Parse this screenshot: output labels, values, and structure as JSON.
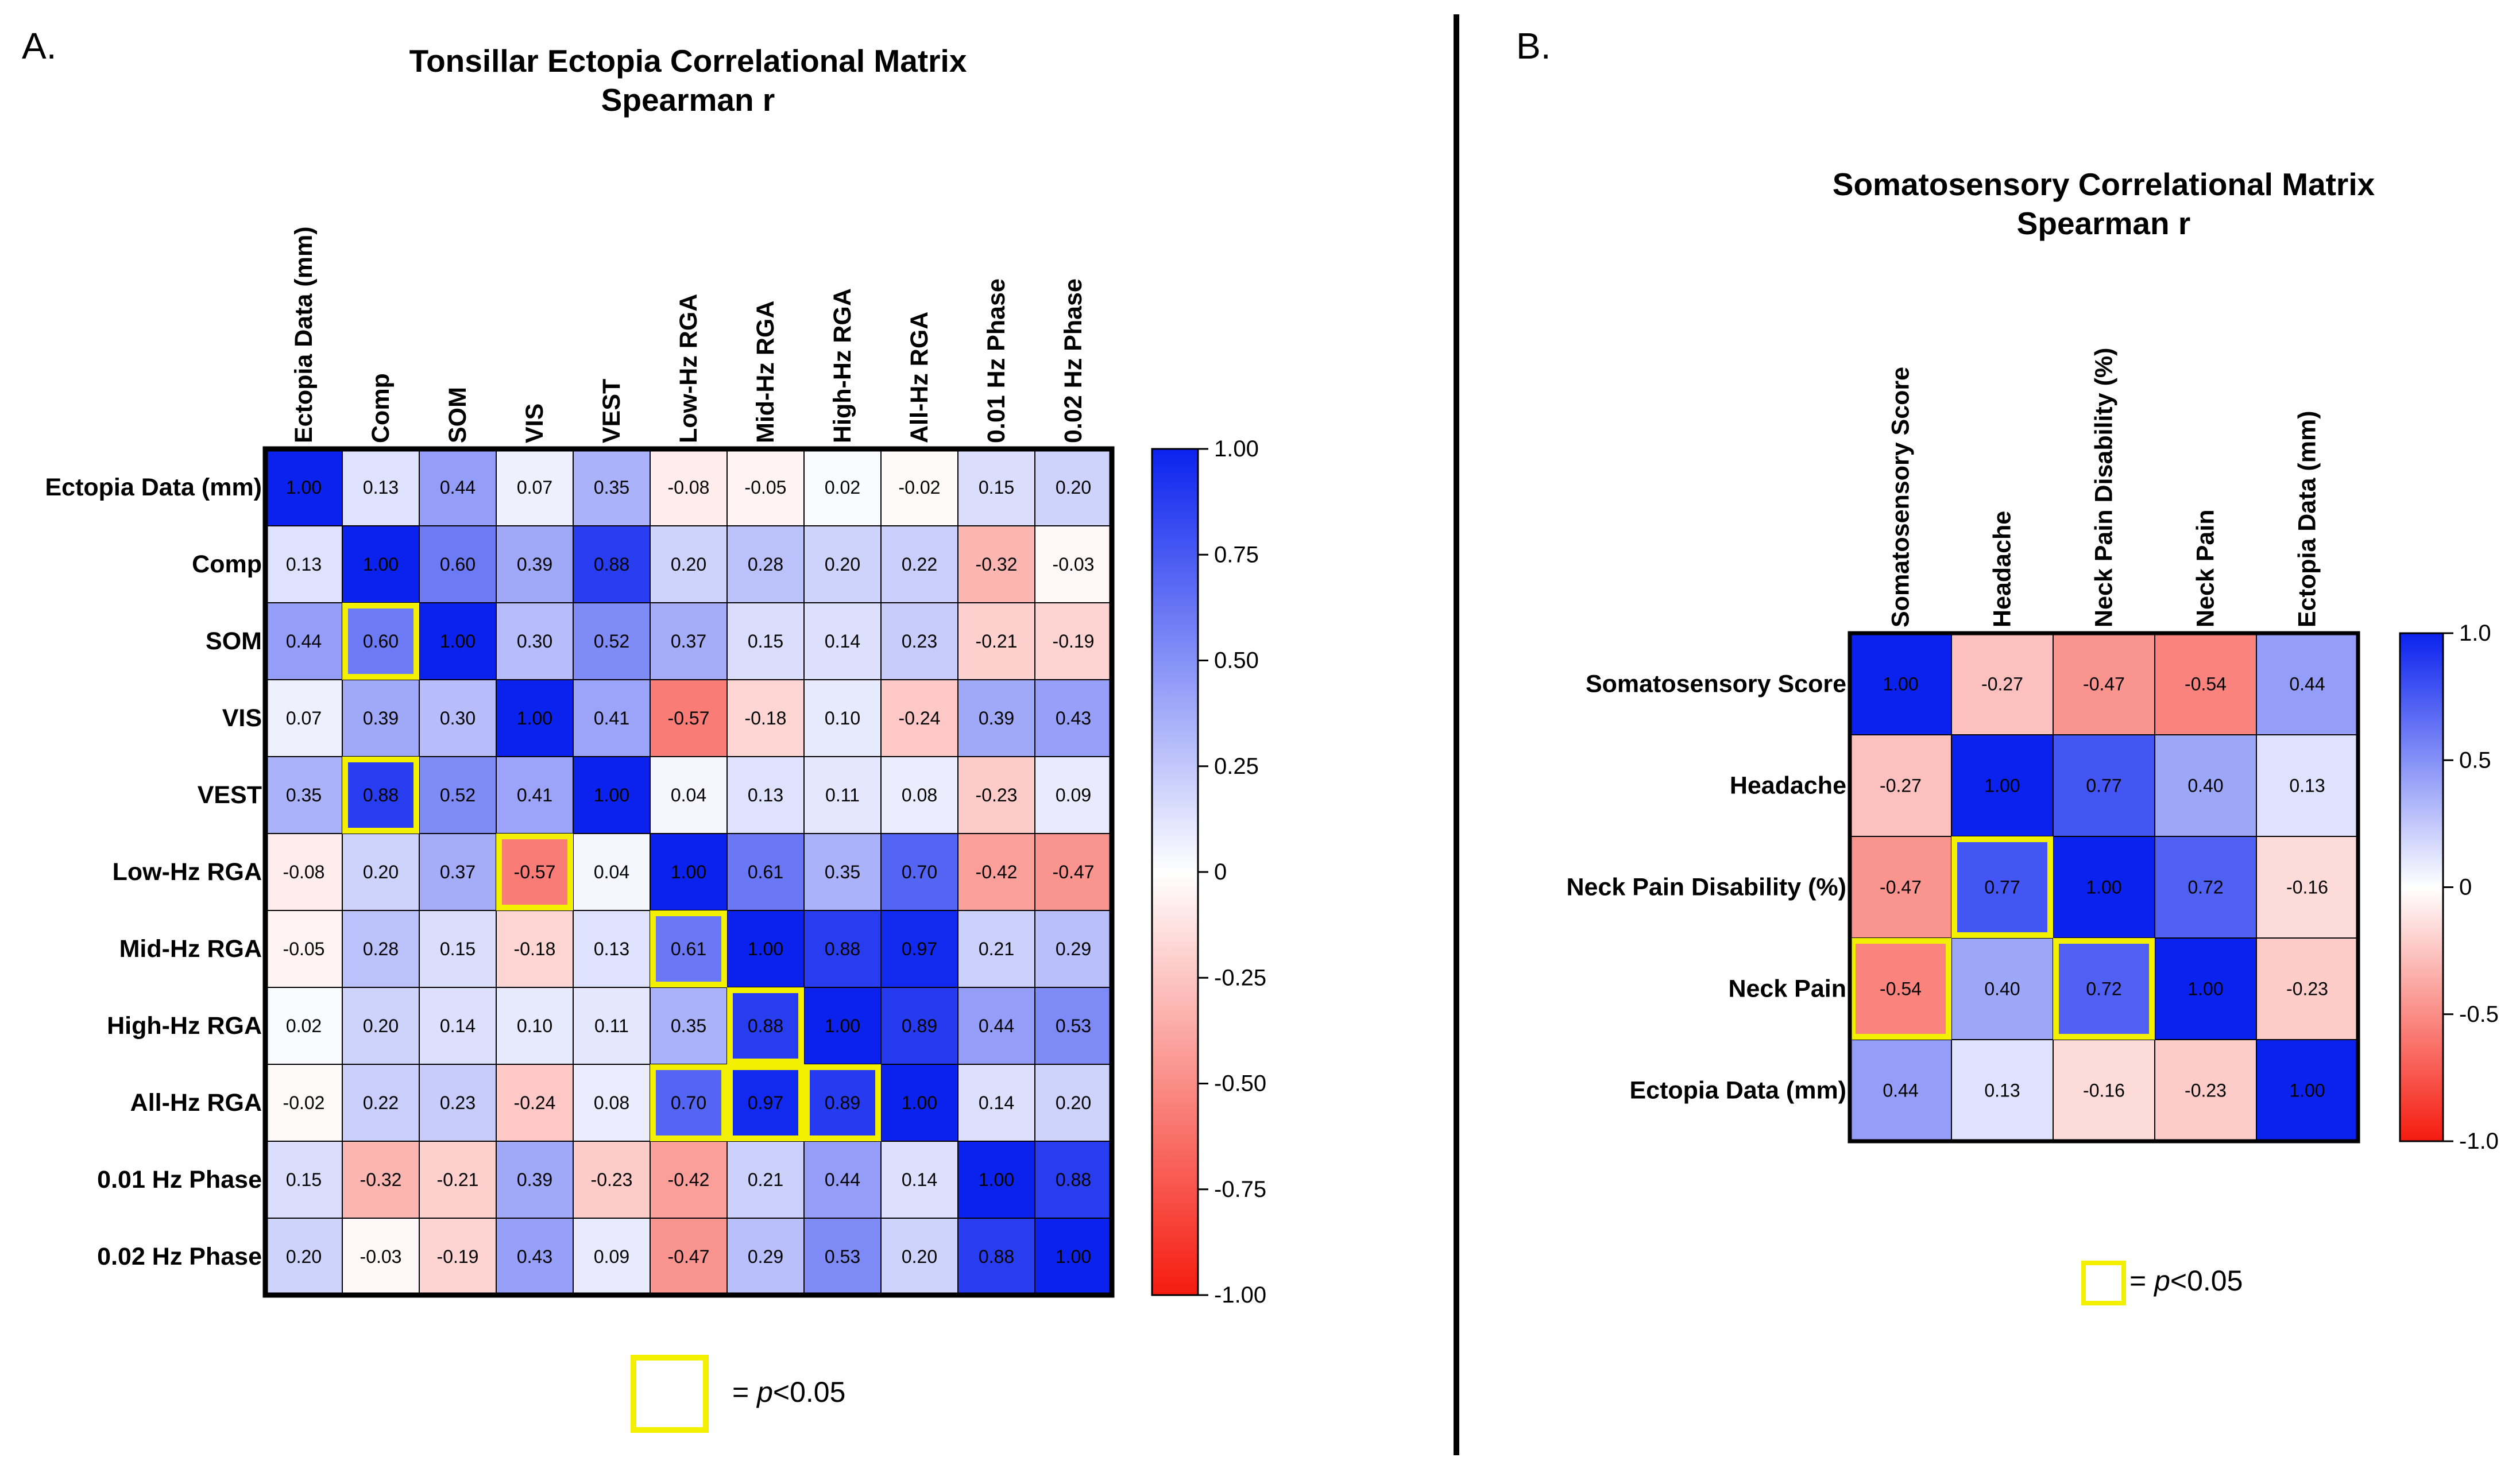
{
  "panels": {
    "a": {
      "letter": "A.",
      "title_line1": "Tonsillar Ectopia Correlational Matrix",
      "title_line2": "Spearman r"
    },
    "b": {
      "letter": "B.",
      "title_line1": "Somatosensory Correlational Matrix",
      "title_line2": "Spearman r"
    }
  },
  "legend": {
    "a": {
      "prefix": "= ",
      "italic": "p",
      "suffix": "<0.05"
    },
    "b": {
      "prefix": "= ",
      "italic": "p",
      "suffix": "<0.05"
    }
  },
  "colors": {
    "positive": "#0b22ee",
    "negative": "#f51b0f",
    "neutral": "#ffffff",
    "highlight": "#f2f000",
    "divider": "#000000"
  },
  "chart_data": [
    {
      "type": "heatmap",
      "title": "Tonsillar Ectopia Correlational Matrix",
      "subtitle": "Spearman r",
      "labels": [
        "Ectopia Data (mm)",
        "Comp",
        "SOM",
        "VIS",
        "VEST",
        "Low-Hz RGA",
        "Mid-Hz RGA",
        "High-Hz RGA",
        "All-Hz RGA",
        "0.01 Hz Phase",
        "0.02 Hz Phase"
      ],
      "values": [
        [
          1.0,
          0.13,
          0.44,
          0.07,
          0.35,
          -0.08,
          -0.05,
          0.02,
          -0.02,
          0.15,
          0.2
        ],
        [
          0.13,
          1.0,
          0.6,
          0.39,
          0.88,
          0.2,
          0.28,
          0.2,
          0.22,
          -0.32,
          -0.03
        ],
        [
          0.44,
          0.6,
          1.0,
          0.3,
          0.52,
          0.37,
          0.15,
          0.14,
          0.23,
          -0.21,
          -0.19
        ],
        [
          0.07,
          0.39,
          0.3,
          1.0,
          0.41,
          -0.57,
          -0.18,
          0.1,
          -0.24,
          0.39,
          0.43
        ],
        [
          0.35,
          0.88,
          0.52,
          0.41,
          1.0,
          0.04,
          0.13,
          0.11,
          0.08,
          -0.23,
          0.09
        ],
        [
          -0.08,
          0.2,
          0.37,
          -0.57,
          0.04,
          1.0,
          0.61,
          0.35,
          0.7,
          -0.42,
          -0.47
        ],
        [
          -0.05,
          0.28,
          0.15,
          -0.18,
          0.13,
          0.61,
          1.0,
          0.88,
          0.97,
          0.21,
          0.29
        ],
        [
          0.02,
          0.2,
          0.14,
          0.1,
          0.11,
          0.35,
          0.88,
          1.0,
          0.89,
          0.44,
          0.53
        ],
        [
          -0.02,
          0.22,
          0.23,
          -0.24,
          0.08,
          0.7,
          0.97,
          0.89,
          1.0,
          0.14,
          0.2
        ],
        [
          0.15,
          -0.32,
          -0.21,
          0.39,
          -0.23,
          -0.42,
          0.21,
          0.44,
          0.14,
          1.0,
          0.88
        ],
        [
          0.2,
          -0.03,
          -0.19,
          0.43,
          0.09,
          -0.47,
          0.29,
          0.53,
          0.2,
          0.88,
          1.0
        ]
      ],
      "significant": [
        [
          2,
          1
        ],
        [
          4,
          1
        ],
        [
          5,
          3
        ],
        [
          6,
          5
        ],
        [
          7,
          6
        ],
        [
          8,
          5
        ],
        [
          8,
          6
        ],
        [
          8,
          7
        ]
      ],
      "colorbar": {
        "range": [
          -1,
          1
        ],
        "ticks": [
          "1.00",
          "0.75",
          "0.50",
          "0.25",
          "0",
          "-0.25",
          "-0.50",
          "-0.75",
          "-1.00"
        ]
      }
    },
    {
      "type": "heatmap",
      "title": "Somatosensory Correlational Matrix",
      "subtitle": "Spearman r",
      "labels": [
        "Somatosensory Score",
        "Headache",
        "Neck Pain Disability (%)",
        "Neck Pain",
        "Ectopia Data (mm)"
      ],
      "values": [
        [
          1.0,
          -0.27,
          -0.47,
          -0.54,
          0.44
        ],
        [
          -0.27,
          1.0,
          0.77,
          0.4,
          0.13
        ],
        [
          -0.47,
          0.77,
          1.0,
          0.72,
          -0.16
        ],
        [
          -0.54,
          0.4,
          0.72,
          1.0,
          -0.23
        ],
        [
          0.44,
          0.13,
          -0.16,
          -0.23,
          1.0
        ]
      ],
      "significant": [
        [
          2,
          1
        ],
        [
          3,
          0
        ],
        [
          3,
          2
        ]
      ],
      "colorbar": {
        "range": [
          -1,
          1
        ],
        "ticks": [
          "1.0",
          "0.5",
          "0",
          "-0.5",
          "-1.0"
        ]
      }
    }
  ]
}
